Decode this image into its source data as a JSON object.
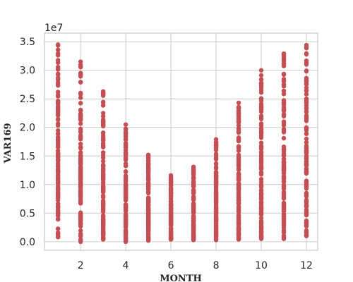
{
  "chart_data": {
    "type": "scatter",
    "title": "",
    "xlabel": "MONTH",
    "ylabel": "VAR169",
    "y_offset_label": "1e7",
    "xlim": [
      0.4,
      12.5
    ],
    "ylim": [
      -0.15,
      3.65
    ],
    "x_ticks": [
      2,
      4,
      6,
      8,
      10,
      12
    ],
    "y_ticks": [
      0.0,
      0.5,
      1.0,
      1.5,
      2.0,
      2.5,
      3.0,
      3.5
    ],
    "x_tick_labels": [
      "2",
      "4",
      "6",
      "8",
      "10",
      "12"
    ],
    "y_tick_labels": [
      "0.0",
      "0.5",
      "1.0",
      "1.5",
      "2.0",
      "2.5",
      "3.0",
      "3.5"
    ],
    "grid": true,
    "marker_color": "#c44e52",
    "series": [
      {
        "x": [
          1,
          2,
          3,
          4,
          5,
          6,
          7,
          8,
          9,
          10,
          11,
          12
        ],
        "y_min": [
          0.08,
          0.0,
          0.04,
          0.0,
          0.02,
          0.04,
          0.03,
          0.03,
          0.04,
          0.05,
          0.05,
          0.1
        ],
        "y_max": [
          3.45,
          3.15,
          2.63,
          2.05,
          1.52,
          1.16,
          1.31,
          1.79,
          2.43,
          3.0,
          3.29,
          3.44
        ]
      }
    ]
  }
}
